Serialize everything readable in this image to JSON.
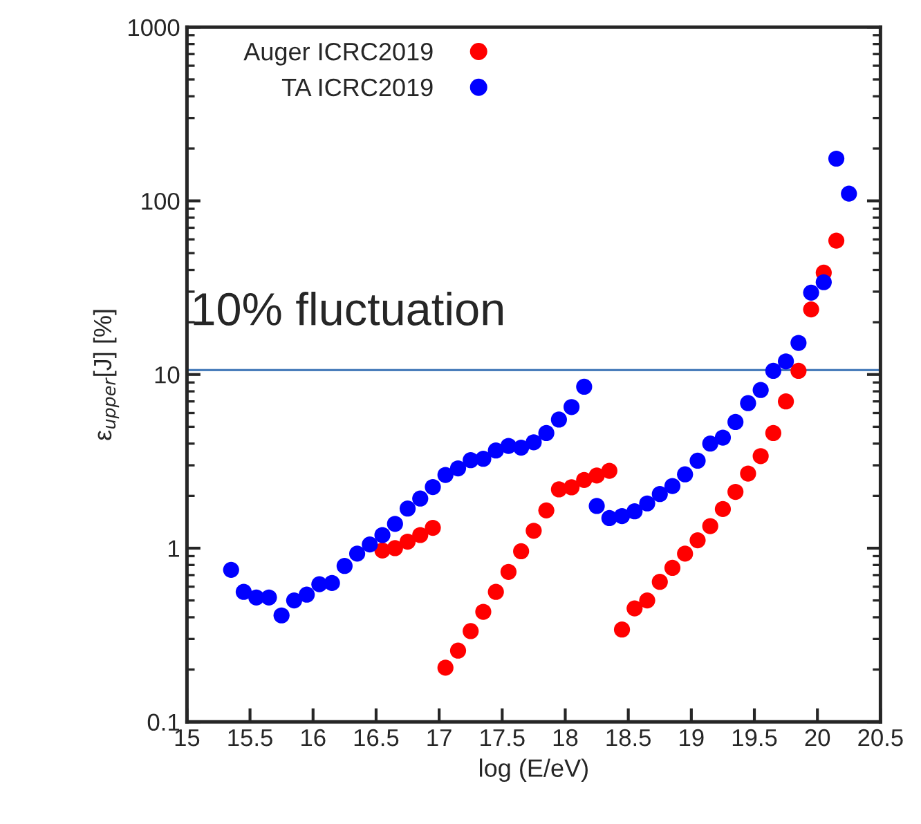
{
  "chart_data": {
    "type": "scatter",
    "xlabel": "log (E/eV)",
    "ylabel": "ε$_{upper}$[J] [%]",
    "xlim": [
      15,
      20.5
    ],
    "xticks": [
      15,
      15.5,
      16,
      16.5,
      17,
      17.5,
      18,
      18.5,
      19,
      19.5,
      20,
      20.5
    ],
    "ylim": [
      0.1,
      1000
    ],
    "yticks": [
      0.1,
      1,
      10,
      100,
      1000
    ],
    "log": "y",
    "grid": false,
    "legend": "top left",
    "marker": "circle",
    "ref_lines": [
      {
        "axis": "y",
        "value": 10.6,
        "label": "10% fluctuation",
        "color": "#4a7ebb"
      }
    ],
    "series": [
      {
        "name": "Auger ICRC2019",
        "color": "#ff0000",
        "x": [
          16.55,
          16.65,
          16.75,
          16.85,
          16.95,
          17.05,
          17.15,
          17.25,
          17.35,
          17.45,
          17.55,
          17.65,
          17.75,
          17.85,
          17.95,
          18.05,
          18.15,
          18.25,
          18.35,
          18.45,
          18.55,
          18.65,
          18.75,
          18.85,
          18.95,
          19.05,
          19.15,
          19.25,
          19.35,
          19.45,
          19.55,
          19.65,
          19.75,
          19.85,
          19.95,
          20.05,
          20.15
        ],
        "values": [
          0.97,
          1.0,
          1.09,
          1.19,
          1.31,
          0.205,
          0.257,
          0.333,
          0.43,
          0.56,
          0.73,
          0.96,
          1.26,
          1.65,
          2.18,
          2.24,
          2.47,
          2.62,
          2.79,
          0.34,
          0.45,
          0.5,
          0.64,
          0.77,
          0.93,
          1.11,
          1.34,
          1.68,
          2.11,
          2.69,
          3.39,
          4.6,
          7.0,
          10.5,
          23.7,
          38.6,
          59
        ]
      },
      {
        "name": "TA ICRC2019",
        "color": "#0000ff",
        "x": [
          15.35,
          15.45,
          15.55,
          15.65,
          15.75,
          15.85,
          15.95,
          16.05,
          16.15,
          16.25,
          16.35,
          16.45,
          16.55,
          16.65,
          16.75,
          16.85,
          16.95,
          17.05,
          17.15,
          17.25,
          17.35,
          17.45,
          17.55,
          17.65,
          17.75,
          17.85,
          17.95,
          18.05,
          18.15,
          18.25,
          18.35,
          18.45,
          18.55,
          18.65,
          18.75,
          18.85,
          18.95,
          19.05,
          19.15,
          19.25,
          19.35,
          19.45,
          19.55,
          19.65,
          19.75,
          19.85,
          19.95,
          20.05,
          20.15,
          20.25
        ],
        "values": [
          0.75,
          0.56,
          0.52,
          0.52,
          0.41,
          0.5,
          0.54,
          0.62,
          0.63,
          0.79,
          0.93,
          1.05,
          1.19,
          1.38,
          1.69,
          1.93,
          2.25,
          2.64,
          2.88,
          3.21,
          3.27,
          3.65,
          3.88,
          3.79,
          4.07,
          4.6,
          5.5,
          6.5,
          8.5,
          1.75,
          1.49,
          1.53,
          1.63,
          1.81,
          2.05,
          2.28,
          2.66,
          3.19,
          4.0,
          4.33,
          5.33,
          6.84,
          8.14,
          10.5,
          11.9,
          15.2,
          29.6,
          34,
          175,
          110
        ]
      }
    ]
  }
}
